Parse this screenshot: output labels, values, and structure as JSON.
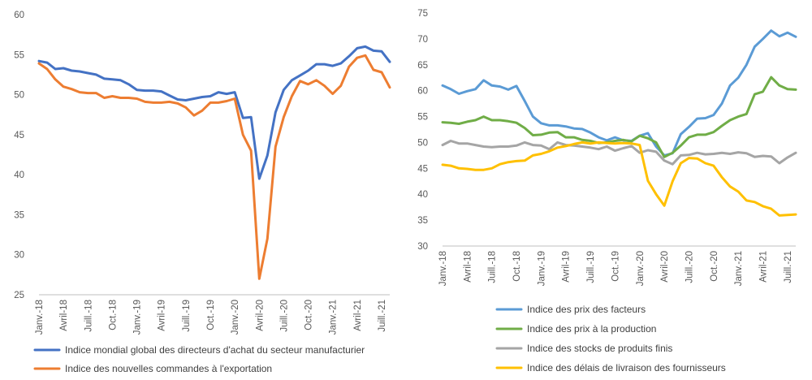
{
  "chart_data": [
    {
      "type": "line",
      "title": "",
      "xlabel": "",
      "ylabel": "",
      "ylim": [
        25,
        60
      ],
      "yticks": [
        "25",
        "30",
        "35",
        "40",
        "45",
        "50",
        "55",
        "60"
      ],
      "categories": [
        "Janv.-18",
        "",
        "",
        "Avril-18",
        "",
        "",
        "Juill.-18",
        "",
        "",
        "Oct.-18",
        "",
        "",
        "Janv.-19",
        "",
        "",
        "Avril-19",
        "",
        "",
        "Juill.-19",
        "",
        "",
        "Oct.-19",
        "",
        "",
        "Janv.-20",
        "",
        "",
        "Avril-20",
        "",
        "",
        "Juill.-20",
        "",
        "",
        "Oct.-20",
        "",
        "",
        "Janv.-21",
        "",
        "",
        "Avril-21",
        "",
        "",
        "Juill.-21",
        ""
      ],
      "grid": false,
      "legend_position": "bottom",
      "series": [
        {
          "name": "Indice mondial global des directeurs d'achat du secteur manufacturier",
          "color": "#4472C4",
          "values": [
            54.2,
            54.0,
            53.2,
            53.3,
            53.0,
            52.9,
            52.7,
            52.5,
            52.0,
            51.9,
            51.8,
            51.3,
            50.6,
            50.5,
            50.5,
            50.4,
            49.9,
            49.4,
            49.3,
            49.5,
            49.7,
            49.8,
            50.3,
            50.1,
            50.3,
            47.1,
            47.2,
            39.5,
            42.4,
            47.8,
            50.6,
            51.8,
            52.4,
            53.0,
            53.8,
            53.8,
            53.6,
            53.9,
            54.8,
            55.8,
            56.0,
            55.5,
            55.4,
            54.1
          ]
        },
        {
          "name": "Indice des nouvelles commandes à l'exportation",
          "color": "#ED7D31",
          "values": [
            53.9,
            53.2,
            51.9,
            51.0,
            50.7,
            50.3,
            50.2,
            50.2,
            49.6,
            49.8,
            49.6,
            49.6,
            49.5,
            49.1,
            49.0,
            49.0,
            49.1,
            48.9,
            48.4,
            47.4,
            48.0,
            49.0,
            49.0,
            49.2,
            49.5,
            45.0,
            43.0,
            27.0,
            32.0,
            43.5,
            47.2,
            49.8,
            51.7,
            51.3,
            51.8,
            51.1,
            50.1,
            51.1,
            53.5,
            54.6,
            54.9,
            53.1,
            52.8,
            50.9
          ]
        }
      ]
    },
    {
      "type": "line",
      "title": "",
      "xlabel": "",
      "ylabel": "",
      "ylim": [
        30,
        75
      ],
      "yticks": [
        "30",
        "35",
        "40",
        "45",
        "50",
        "55",
        "60",
        "65",
        "70",
        "75"
      ],
      "categories": [
        "Janv.-18",
        "",
        "",
        "Avril-18",
        "",
        "",
        "Juill.-18",
        "",
        "",
        "Oct.-18",
        "",
        "",
        "Janv.-19",
        "",
        "",
        "Avril-19",
        "",
        "",
        "Juill.-19",
        "",
        "",
        "Oct.-19",
        "",
        "",
        "Janv.-20",
        "",
        "",
        "Avril-20",
        "",
        "",
        "Juill.-20",
        "",
        "",
        "Oct.-20",
        "",
        "",
        "Janv.-21",
        "",
        "",
        "Avril-21",
        "",
        "",
        "Juill.-21",
        ""
      ],
      "grid": false,
      "legend_position": "bottom",
      "series": [
        {
          "name": "Indice des prix des facteurs",
          "color": "#5B9BD5",
          "values": [
            61.0,
            60.3,
            59.4,
            59.9,
            60.3,
            62.0,
            61.0,
            60.8,
            60.2,
            60.9,
            58.0,
            55.0,
            53.7,
            53.3,
            53.3,
            53.1,
            52.7,
            52.6,
            51.9,
            51.0,
            50.4,
            51.0,
            50.4,
            50.3,
            51.3,
            51.8,
            49.2,
            47.5,
            47.9,
            51.6,
            53.0,
            54.6,
            54.7,
            55.3,
            57.5,
            61.0,
            62.5,
            65.0,
            68.5,
            70.0,
            71.6,
            70.5,
            71.2,
            70.4
          ]
        },
        {
          "name": "Indice des prix à la production",
          "color": "#70AD47",
          "values": [
            53.9,
            53.8,
            53.6,
            54.0,
            54.3,
            55.0,
            54.3,
            54.3,
            54.1,
            53.8,
            52.8,
            51.4,
            51.5,
            51.9,
            52.0,
            51.0,
            51.0,
            50.5,
            50.3,
            49.9,
            50.0,
            50.3,
            50.5,
            50.2,
            51.3,
            50.8,
            50.0,
            47.2,
            48.0,
            49.4,
            51.0,
            51.5,
            51.5,
            52.0,
            53.2,
            54.3,
            55.0,
            55.5,
            59.3,
            59.8,
            62.6,
            61.0,
            60.3,
            60.2
          ]
        },
        {
          "name": "Indice des stocks de produits finis",
          "color": "#A5A5A5",
          "values": [
            49.5,
            50.3,
            49.8,
            49.8,
            49.5,
            49.2,
            49.1,
            49.2,
            49.2,
            49.4,
            50.0,
            49.5,
            49.4,
            48.7,
            50.0,
            49.5,
            49.4,
            49.2,
            49.0,
            48.7,
            49.2,
            48.4,
            48.9,
            49.3,
            48.0,
            48.5,
            48.2,
            46.5,
            45.8,
            47.5,
            47.6,
            48.0,
            47.7,
            47.8,
            48.0,
            47.8,
            48.1,
            47.9,
            47.2,
            47.4,
            47.3,
            46.0,
            47.1,
            48.0
          ]
        },
        {
          "name": "Indice des délais de livraison des fournisseurs",
          "color": "#FFC000",
          "values": [
            45.7,
            45.5,
            45.0,
            44.9,
            44.7,
            44.7,
            45.0,
            45.8,
            46.2,
            46.4,
            46.5,
            47.5,
            47.8,
            48.3,
            49.0,
            49.3,
            49.7,
            50.0,
            49.8,
            50.0,
            49.9,
            49.8,
            49.9,
            49.8,
            49.5,
            42.6,
            40.0,
            37.8,
            42.5,
            46.0,
            47.0,
            46.9,
            46.0,
            45.5,
            43.3,
            41.5,
            40.5,
            38.8,
            38.5,
            37.7,
            37.2,
            35.9,
            36.0,
            36.1
          ]
        }
      ]
    }
  ]
}
